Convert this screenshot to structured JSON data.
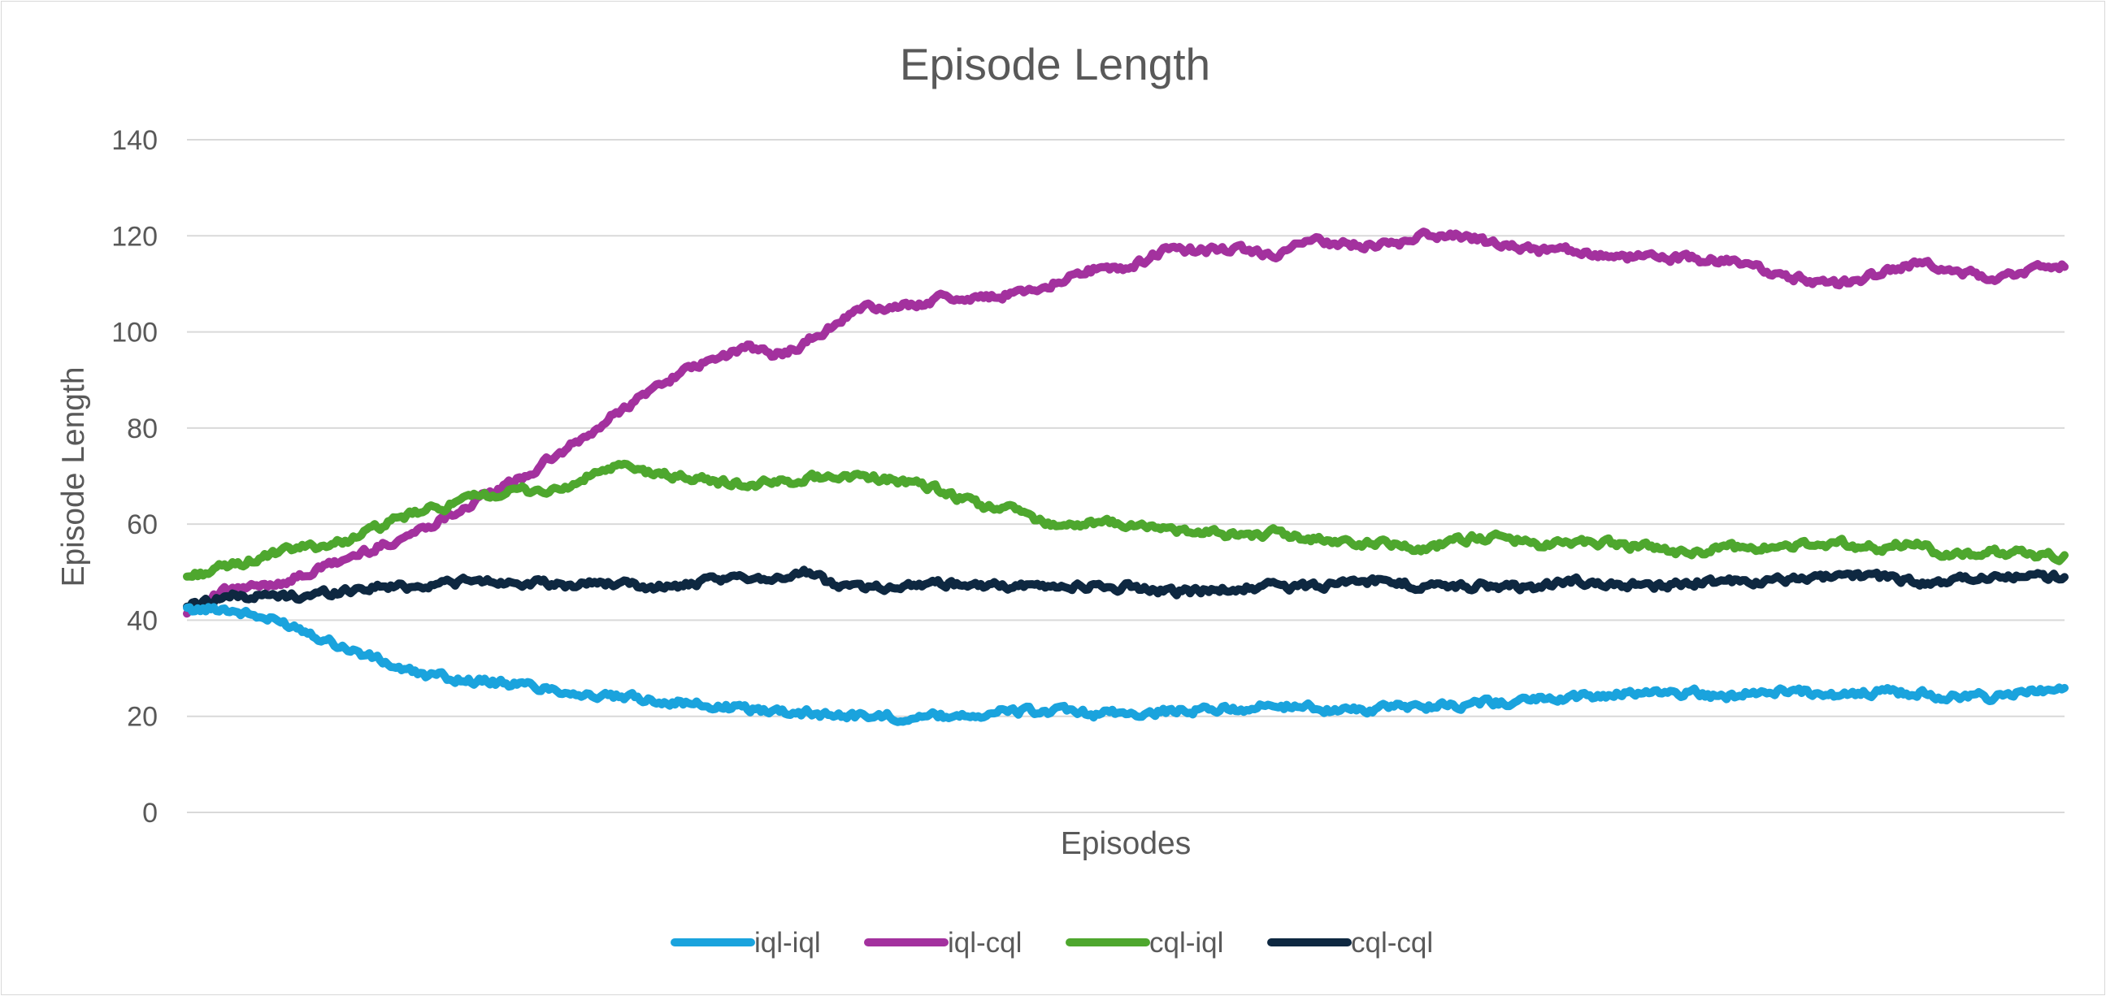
{
  "chart_data": {
    "type": "line",
    "title": "Episode Length",
    "xlabel": "Episodes",
    "ylabel": "Episode Length",
    "ylim": [
      0,
      140
    ],
    "yticks": [
      0,
      20,
      40,
      60,
      80,
      100,
      120,
      140
    ],
    "xlim": [
      0,
      100
    ],
    "grid": true,
    "legend_position": "bottom",
    "series": [
      {
        "name": "iql-iql",
        "color": "#1AA3DD",
        "x": [
          0,
          2,
          4,
          6,
          8,
          10,
          12,
          15,
          18,
          20,
          22,
          25,
          28,
          30,
          32,
          34,
          36,
          38,
          40,
          42,
          44,
          46,
          48,
          50,
          52,
          55,
          58,
          60,
          62,
          65,
          68,
          70,
          72,
          74,
          76,
          78,
          80,
          82,
          84,
          86,
          88,
          90,
          92,
          94,
          96,
          98,
          100
        ],
        "y": [
          42,
          42.5,
          40.5,
          38.5,
          35,
          32,
          29,
          27.5,
          26.5,
          25.5,
          24,
          23.5,
          22,
          21.5,
          21,
          20.5,
          20,
          20,
          20,
          20.5,
          21,
          21,
          20.5,
          20.5,
          21,
          21.5,
          22,
          22,
          21,
          22,
          22.5,
          23,
          23.5,
          24,
          24.5,
          25,
          25,
          24,
          25.5,
          25,
          24.5,
          25,
          25,
          24,
          24,
          25,
          25
        ]
      },
      {
        "name": "iql-cql",
        "color": "#A3319E",
        "x": [
          0,
          2,
          4,
          6,
          8,
          10,
          12,
          14,
          16,
          18,
          20,
          22,
          22.8,
          24,
          26,
          28,
          30,
          31,
          32,
          34,
          35,
          36,
          38,
          40,
          42,
          44,
          46,
          48,
          50,
          52,
          54,
          56,
          58,
          60,
          62,
          64,
          66,
          68,
          70,
          72,
          74,
          76,
          78,
          80,
          82,
          84,
          86,
          88,
          90,
          92,
          94,
          96,
          98,
          100
        ],
        "y": [
          42,
          46,
          47,
          49,
          52,
          55,
          58,
          62,
          66,
          70,
          75,
          80,
          83,
          86,
          91,
          94,
          97,
          95,
          96,
          100,
          103,
          105,
          105,
          107,
          107,
          108,
          110,
          113,
          113,
          117,
          117,
          117,
          116,
          119,
          118,
          118,
          120,
          120,
          118,
          117,
          117,
          115,
          116,
          115,
          115,
          113,
          111,
          110,
          112,
          114,
          113,
          111,
          113,
          114
        ]
      },
      {
        "name": "cql-iql",
        "color": "#4EA72E",
        "x": [
          0,
          2,
          4,
          6,
          8,
          10,
          12,
          14,
          16,
          18,
          20,
          22,
          23,
          24,
          26,
          28,
          30,
          32,
          34,
          36,
          38,
          40,
          42,
          44,
          46,
          48,
          50,
          52,
          54,
          56,
          58,
          60,
          62,
          64,
          66,
          68,
          70,
          72,
          74,
          76,
          78,
          80,
          82,
          84,
          86,
          88,
          90,
          92,
          94,
          96,
          98,
          100
        ],
        "y": [
          49,
          51,
          53,
          55,
          56,
          59,
          62,
          64,
          66,
          67,
          67,
          71,
          72,
          71,
          70,
          69,
          68,
          69,
          70,
          70,
          69,
          67,
          64,
          63,
          60,
          60,
          60,
          59,
          58,
          58,
          58,
          57,
          56,
          56,
          55,
          57,
          57,
          56,
          56,
          56,
          55,
          54,
          55,
          55,
          56,
          56,
          55,
          56,
          53,
          54,
          54,
          53
        ]
      },
      {
        "name": "cql-cql",
        "color": "#0E2841",
        "x": [
          0,
          2,
          4,
          6,
          8,
          10,
          12,
          14,
          16,
          18,
          20,
          22,
          24,
          26,
          28,
          30,
          32,
          33,
          34,
          36,
          38,
          40,
          42,
          44,
          46,
          48,
          50,
          52,
          54,
          56,
          58,
          60,
          62,
          64,
          66,
          68,
          70,
          72,
          74,
          76,
          78,
          80,
          82,
          84,
          86,
          88,
          90,
          92,
          94,
          96,
          98,
          100
        ],
        "y": [
          43,
          45,
          45,
          45,
          46,
          47,
          47,
          48,
          48,
          48,
          47,
          48,
          47,
          47,
          48,
          49,
          49,
          50,
          48,
          47,
          47,
          48,
          47,
          47,
          47,
          47,
          47,
          46,
          46,
          47,
          47,
          47,
          48,
          48,
          47,
          47,
          47,
          47,
          48,
          48,
          47,
          48,
          48,
          48,
          49,
          49,
          49,
          48,
          48,
          49,
          49,
          49
        ]
      }
    ]
  }
}
